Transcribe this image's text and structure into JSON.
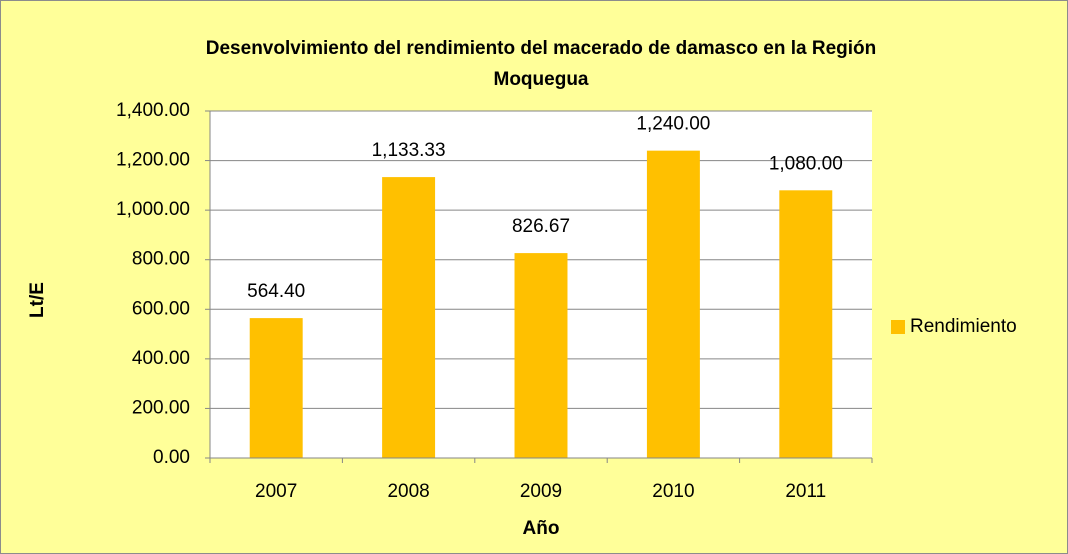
{
  "chart_data": {
    "type": "bar",
    "title": [
      "Desenvolvimiento del rendimiento del macerado de damasco en la Región",
      "Moquegua"
    ],
    "x_label": "Año",
    "y_label": "Lt/E",
    "categories": [
      "2007",
      "2008",
      "2009",
      "2010",
      "2011"
    ],
    "series": [
      {
        "name": "Rendimiento",
        "color": "#ffc000",
        "values": [
          564.4,
          1133.33,
          826.67,
          1240.0,
          1080.0
        ],
        "value_labels": [
          "564.40",
          "1,133.33",
          "826.67",
          "1,240.00",
          "1,080.00"
        ]
      }
    ],
    "ylim": [
      0,
      1400
    ],
    "yticks": [
      {
        "value": 0,
        "label": "0.00"
      },
      {
        "value": 200,
        "label": "200.00"
      },
      {
        "value": 400,
        "label": "400.00"
      },
      {
        "value": 600,
        "label": "600.00"
      },
      {
        "value": 800,
        "label": "800.00"
      },
      {
        "value": 1000,
        "label": "1,000.00"
      },
      {
        "value": 1200,
        "label": "1,200.00"
      },
      {
        "value": 1400,
        "label": "1,400.00"
      }
    ],
    "grid": true,
    "legend": "right",
    "background": "#ffff99"
  }
}
